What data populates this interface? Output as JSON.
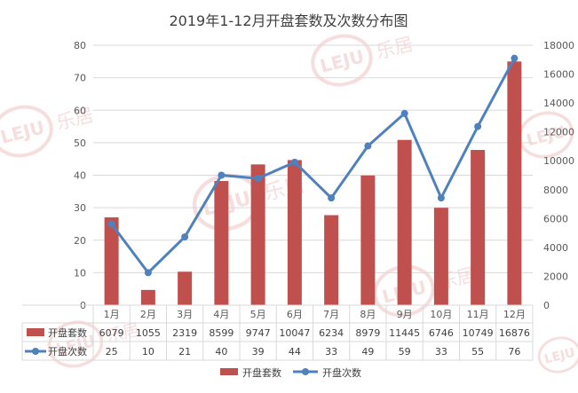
{
  "chart_data": {
    "type": "bar",
    "title": "2019年1-12月开盘套数及次数分布图",
    "categories": [
      "1月",
      "2月",
      "3月",
      "4月",
      "5月",
      "6月",
      "7月",
      "8月",
      "9月",
      "10月",
      "11月",
      "12月"
    ],
    "series": [
      {
        "name": "开盘套数",
        "type": "bar",
        "axis": "right",
        "values": [
          6079,
          1055,
          2319,
          8599,
          9747,
          10047,
          6234,
          8979,
          11445,
          6746,
          10749,
          16876
        ]
      },
      {
        "name": "开盘次数",
        "type": "line",
        "axis": "left",
        "values": [
          25,
          10,
          21,
          40,
          39,
          44,
          33,
          49,
          59,
          33,
          55,
          76
        ]
      }
    ],
    "y_left": {
      "ticks": [
        0,
        10,
        20,
        30,
        40,
        50,
        60,
        70,
        80
      ],
      "ylim": [
        0,
        80
      ]
    },
    "y_right": {
      "ticks": [
        0,
        2000,
        4000,
        6000,
        8000,
        10000,
        12000,
        14000,
        16000,
        18000
      ],
      "ylim": [
        0,
        18000
      ]
    },
    "data_table": true,
    "legend_position": "bottom",
    "colors": {
      "bar": "#c0504d",
      "line": "#4f81bd",
      "grid": "#d9d9d9",
      "watermark": "#e8a2a2"
    },
    "watermark": {
      "logo": "LEJU",
      "text": "乐居"
    }
  }
}
